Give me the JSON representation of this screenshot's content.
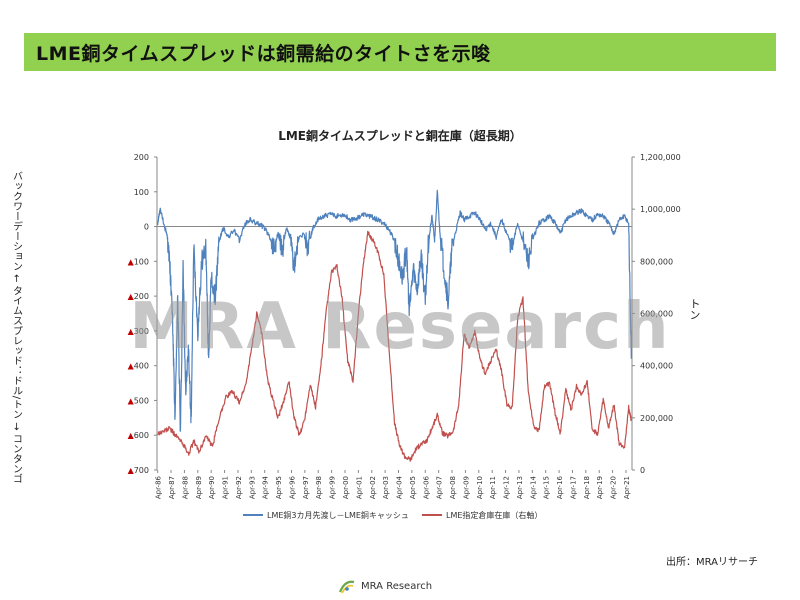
{
  "banner": {
    "title": "LME銅タイムスプレッドは銅需給のタイトさを示唆",
    "color": "#92d050"
  },
  "chart_data": {
    "type": "line",
    "title": "LME銅タイムスプレッドと銅在庫（超長期）",
    "left_axis_title": "バックワーデーション ← タイムスプレッド：ドル/トン → コンタンゴ",
    "right_axis_title": "トン",
    "y_left": {
      "ticks": [
        200,
        100,
        0,
        -100,
        -200,
        -300,
        -400,
        -500,
        -600,
        -700
      ],
      "tick_labels": [
        "200",
        "100",
        "0",
        "▲100",
        "▲200",
        "▲300",
        "▲400",
        "▲500",
        "▲600",
        "▲700"
      ],
      "range": [
        -700,
        200
      ]
    },
    "y_right": {
      "ticks": [
        0,
        200000,
        400000,
        600000,
        800000,
        1000000,
        1200000
      ],
      "tick_labels": [
        "0",
        "200,000",
        "400,000",
        "600,000",
        "800,000",
        "1,000,000",
        "1,200,000"
      ],
      "range": [
        0,
        1200000
      ]
    },
    "x_tick_labels": [
      "Apr-86",
      "Apr-87",
      "Apr-88",
      "Apr-89",
      "Apr-90",
      "Apr-91",
      "Apr-92",
      "Apr-93",
      "Apr-94",
      "Apr-95",
      "Apr-96",
      "Apr-97",
      "Apr-98",
      "Apr-99",
      "Apr-00",
      "Apr-01",
      "Apr-02",
      "Apr-03",
      "Apr-04",
      "Apr-05",
      "Apr-06",
      "Apr-07",
      "Apr-08",
      "Apr-09",
      "Apr-10",
      "Apr-11",
      "Apr-12",
      "Apr-13",
      "Apr-14",
      "Apr-15",
      "Apr-16",
      "Apr-17",
      "Apr-18",
      "Apr-19",
      "Apr-20",
      "Apr-21"
    ],
    "x_range": [
      1986.25,
      2021.75
    ],
    "series": [
      {
        "name": "LME銅3カ月先渡し－LME銅キャッシュ",
        "axis": "left",
        "color": "#4f81bd",
        "points": [
          [
            1986.3,
            10
          ],
          [
            1986.5,
            50
          ],
          [
            1986.8,
            0
          ],
          [
            1987.0,
            -20
          ],
          [
            1987.2,
            -100
          ],
          [
            1987.4,
            -250
          ],
          [
            1987.6,
            -560
          ],
          [
            1987.8,
            -200
          ],
          [
            1988.0,
            -600
          ],
          [
            1988.2,
            -120
          ],
          [
            1988.4,
            -480
          ],
          [
            1988.6,
            -350
          ],
          [
            1988.8,
            -560
          ],
          [
            1989.0,
            -60
          ],
          [
            1989.3,
            -300
          ],
          [
            1989.6,
            -100
          ],
          [
            1989.9,
            -60
          ],
          [
            1990.1,
            -380
          ],
          [
            1990.3,
            -150
          ],
          [
            1990.6,
            -200
          ],
          [
            1990.9,
            -40
          ],
          [
            1991.2,
            -5
          ],
          [
            1991.6,
            -30
          ],
          [
            1992.0,
            -10
          ],
          [
            1992.4,
            -40
          ],
          [
            1992.8,
            5
          ],
          [
            1993.2,
            20
          ],
          [
            1993.6,
            10
          ],
          [
            1994.0,
            5
          ],
          [
            1994.4,
            -10
          ],
          [
            1994.8,
            -40
          ],
          [
            1995.0,
            -60
          ],
          [
            1995.3,
            -20
          ],
          [
            1995.6,
            -70
          ],
          [
            1995.9,
            -5
          ],
          [
            1996.2,
            -30
          ],
          [
            1996.5,
            -120
          ],
          [
            1996.8,
            -40
          ],
          [
            1997.2,
            -20
          ],
          [
            1997.5,
            -60
          ],
          [
            1997.9,
            -5
          ],
          [
            1998.3,
            20
          ],
          [
            1998.7,
            30
          ],
          [
            1999.2,
            35
          ],
          [
            1999.7,
            30
          ],
          [
            2000.2,
            35
          ],
          [
            2000.7,
            20
          ],
          [
            2001.2,
            25
          ],
          [
            2001.7,
            35
          ],
          [
            2002.2,
            30
          ],
          [
            2002.7,
            20
          ],
          [
            2003.2,
            10
          ],
          [
            2003.6,
            -10
          ],
          [
            2004.0,
            -40
          ],
          [
            2004.3,
            -100
          ],
          [
            2004.6,
            -150
          ],
          [
            2004.9,
            -60
          ],
          [
            2005.1,
            -250
          ],
          [
            2005.4,
            -120
          ],
          [
            2005.7,
            -180
          ],
          [
            2006.0,
            -80
          ],
          [
            2006.3,
            -220
          ],
          [
            2006.5,
            -60
          ],
          [
            2006.8,
            30
          ],
          [
            2007.0,
            -40
          ],
          [
            2007.2,
            100
          ],
          [
            2007.4,
            -20
          ],
          [
            2007.7,
            -120
          ],
          [
            2008.0,
            -220
          ],
          [
            2008.3,
            -60
          ],
          [
            2008.6,
            -10
          ],
          [
            2008.9,
            40
          ],
          [
            2009.2,
            20
          ],
          [
            2009.6,
            30
          ],
          [
            2010.0,
            40
          ],
          [
            2010.4,
            20
          ],
          [
            2010.8,
            -10
          ],
          [
            2011.2,
            10
          ],
          [
            2011.6,
            -30
          ],
          [
            2012.0,
            20
          ],
          [
            2012.4,
            -20
          ],
          [
            2012.8,
            -60
          ],
          [
            2013.2,
            10
          ],
          [
            2013.6,
            -40
          ],
          [
            2014.0,
            -100
          ],
          [
            2014.4,
            -30
          ],
          [
            2014.8,
            10
          ],
          [
            2015.2,
            20
          ],
          [
            2015.6,
            30
          ],
          [
            2016.0,
            10
          ],
          [
            2016.4,
            -20
          ],
          [
            2016.8,
            20
          ],
          [
            2017.2,
            30
          ],
          [
            2017.6,
            40
          ],
          [
            2018.0,
            45
          ],
          [
            2018.4,
            30
          ],
          [
            2018.8,
            20
          ],
          [
            2019.2,
            35
          ],
          [
            2019.6,
            30
          ],
          [
            2020.0,
            10
          ],
          [
            2020.4,
            -20
          ],
          [
            2020.8,
            20
          ],
          [
            2021.2,
            30
          ],
          [
            2021.5,
            10
          ],
          [
            2021.7,
            -380
          ]
        ]
      },
      {
        "name": "LME指定倉庫在庫（右軸）",
        "axis": "right",
        "color": "#c0504d",
        "points": [
          [
            1986.3,
            140000
          ],
          [
            1986.8,
            150000
          ],
          [
            1987.2,
            160000
          ],
          [
            1987.7,
            130000
          ],
          [
            1988.2,
            100000
          ],
          [
            1988.6,
            60000
          ],
          [
            1989.0,
            110000
          ],
          [
            1989.4,
            70000
          ],
          [
            1989.9,
            130000
          ],
          [
            1990.4,
            90000
          ],
          [
            1990.9,
            200000
          ],
          [
            1991.4,
            280000
          ],
          [
            1991.9,
            300000
          ],
          [
            1992.4,
            260000
          ],
          [
            1992.9,
            330000
          ],
          [
            1993.3,
            460000
          ],
          [
            1993.7,
            600000
          ],
          [
            1994.1,
            520000
          ],
          [
            1994.5,
            350000
          ],
          [
            1994.9,
            270000
          ],
          [
            1995.3,
            200000
          ],
          [
            1995.7,
            260000
          ],
          [
            1996.1,
            340000
          ],
          [
            1996.5,
            200000
          ],
          [
            1996.9,
            130000
          ],
          [
            1997.3,
            200000
          ],
          [
            1997.7,
            330000
          ],
          [
            1998.1,
            240000
          ],
          [
            1998.5,
            400000
          ],
          [
            1998.9,
            610000
          ],
          [
            1999.3,
            760000
          ],
          [
            1999.7,
            780000
          ],
          [
            2000.1,
            650000
          ],
          [
            2000.5,
            420000
          ],
          [
            2000.9,
            340000
          ],
          [
            2001.3,
            600000
          ],
          [
            2001.7,
            800000
          ],
          [
            2002.0,
            910000
          ],
          [
            2002.4,
            880000
          ],
          [
            2002.8,
            830000
          ],
          [
            2003.2,
            750000
          ],
          [
            2003.6,
            460000
          ],
          [
            2004.0,
            180000
          ],
          [
            2004.4,
            90000
          ],
          [
            2004.8,
            50000
          ],
          [
            2005.2,
            40000
          ],
          [
            2005.6,
            80000
          ],
          [
            2006.0,
            100000
          ],
          [
            2006.4,
            110000
          ],
          [
            2006.8,
            160000
          ],
          [
            2007.2,
            210000
          ],
          [
            2007.6,
            140000
          ],
          [
            2008.0,
            130000
          ],
          [
            2008.4,
            150000
          ],
          [
            2008.8,
            250000
          ],
          [
            2009.2,
            520000
          ],
          [
            2009.6,
            470000
          ],
          [
            2010.0,
            530000
          ],
          [
            2010.4,
            420000
          ],
          [
            2010.8,
            370000
          ],
          [
            2011.2,
            420000
          ],
          [
            2011.6,
            460000
          ],
          [
            2012.0,
            380000
          ],
          [
            2012.4,
            250000
          ],
          [
            2012.8,
            240000
          ],
          [
            2013.2,
            580000
          ],
          [
            2013.6,
            660000
          ],
          [
            2014.0,
            300000
          ],
          [
            2014.4,
            170000
          ],
          [
            2014.8,
            150000
          ],
          [
            2015.2,
            320000
          ],
          [
            2015.6,
            330000
          ],
          [
            2016.0,
            220000
          ],
          [
            2016.4,
            140000
          ],
          [
            2016.8,
            310000
          ],
          [
            2017.2,
            230000
          ],
          [
            2017.6,
            320000
          ],
          [
            2018.0,
            290000
          ],
          [
            2018.4,
            340000
          ],
          [
            2018.8,
            150000
          ],
          [
            2019.2,
            140000
          ],
          [
            2019.6,
            270000
          ],
          [
            2020.0,
            160000
          ],
          [
            2020.4,
            250000
          ],
          [
            2020.8,
            100000
          ],
          [
            2021.2,
            90000
          ],
          [
            2021.5,
            240000
          ],
          [
            2021.7,
            190000
          ]
        ]
      }
    ],
    "legend": [
      {
        "label": "LME銅3カ月先渡し－LME銅キャッシュ",
        "color": "#4f81bd"
      },
      {
        "label": "LME指定倉庫在庫（右軸）",
        "color": "#c0504d"
      }
    ],
    "legend_position": "bottom",
    "grid": false
  },
  "watermark": "MRA Research",
  "source": "出所：MRAリサーチ",
  "footer": {
    "logo_text": "MRA Research"
  }
}
